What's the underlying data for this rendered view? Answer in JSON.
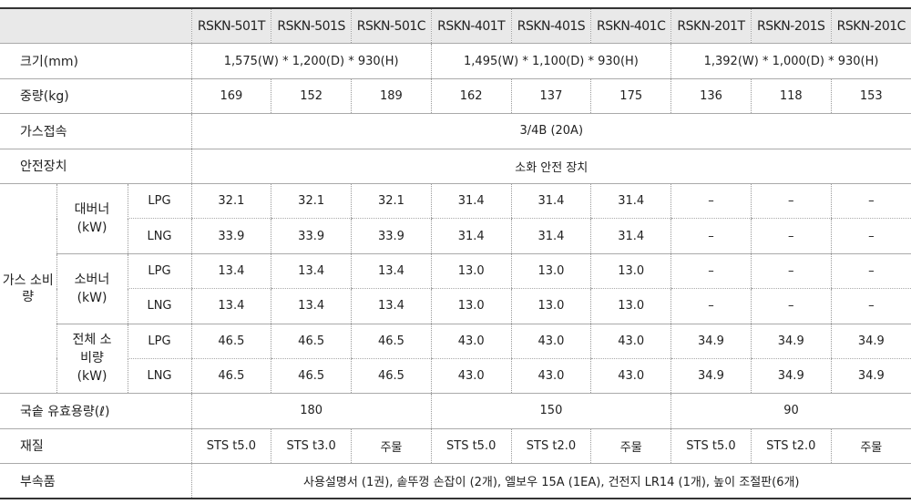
{
  "header": {
    "models": [
      "RSKN-501T",
      "RSKN-501S",
      "RSKN-501C",
      "RSKN-401T",
      "RSKN-401S",
      "RSKN-401C",
      "RSKN-201T",
      "RSKN-201S",
      "RSKN-201C"
    ]
  },
  "rows": [
    {
      "label": "크기(mm)",
      "spans": [
        "1,575(W) * 1,200(D) * 930(H)",
        "1,495(W) * 1,100(D) * 930(H)",
        "1,392(W) * 1,000(D) * 930(H)"
      ]
    },
    {
      "label": "중량(kg)",
      "cells": [
        "169",
        "152",
        "189",
        "162",
        "137",
        "175",
        "136",
        "118",
        "153"
      ]
    },
    {
      "label": "가스접속",
      "all": "3/4B (20A)"
    },
    {
      "label": "안전장치",
      "all": "소화 안전 장치"
    },
    {
      "label": "가스 소비량",
      "groups": [
        {
          "label": "대버너 (kW)",
          "fuels": [
            {
              "fuel": "LPG",
              "cells": [
                "32.1",
                "32.1",
                "32.1",
                "31.4",
                "31.4",
                "31.4",
                "–",
                "–",
                "–"
              ]
            },
            {
              "fuel": "LNG",
              "cells": [
                "33.9",
                "33.9",
                "33.9",
                "31.4",
                "31.4",
                "31.4",
                "–",
                "–",
                "–"
              ]
            }
          ]
        },
        {
          "label": "소버너 (kW)",
          "fuels": [
            {
              "fuel": "LPG",
              "cells": [
                "13.4",
                "13.4",
                "13.4",
                "13.0",
                "13.0",
                "13.0",
                "–",
                "–",
                "–"
              ]
            },
            {
              "fuel": "LNG",
              "cells": [
                "13.4",
                "13.4",
                "13.4",
                "13.0",
                "13.0",
                "13.0",
                "–",
                "–",
                "–"
              ]
            }
          ]
        },
        {
          "label": "전체 소비량 (kW)",
          "fuels": [
            {
              "fuel": "LPG",
              "cells": [
                "46.5",
                "46.5",
                "46.5",
                "43.0",
                "43.0",
                "43.0",
                "34.9",
                "34.9",
                "34.9"
              ]
            },
            {
              "fuel": "LNG",
              "cells": [
                "46.5",
                "46.5",
                "46.5",
                "43.0",
                "43.0",
                "43.0",
                "34.9",
                "34.9",
                "34.9"
              ]
            }
          ]
        }
      ]
    },
    {
      "label": "국솥 유효용량(ℓ)",
      "spans": [
        "180",
        "150",
        "90"
      ]
    },
    {
      "label": "재질",
      "cells": [
        "STS t5.0",
        "STS t3.0",
        "주물",
        "STS t5.0",
        "STS t2.0",
        "주물",
        "STS t5.0",
        "STS t2.0",
        "주물"
      ]
    },
    {
      "label": "부속품",
      "all": "사용설명서 (1권), 솥뚜껑 손잡이 (2개), 엘보우 15A (1EA), 건전지 LR14 (1개), 높이 조절판(6개)"
    }
  ]
}
